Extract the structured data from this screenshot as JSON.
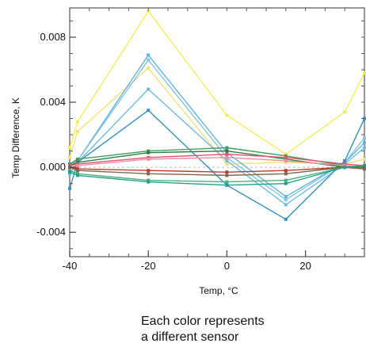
{
  "chart_data": {
    "type": "line",
    "xlabel": "Temp, °C",
    "ylabel": "Temp Difference, K",
    "xlim": [
      -40,
      35
    ],
    "ylim": [
      -0.0055,
      0.0098
    ],
    "xticks": [
      -40,
      -20,
      0,
      20
    ],
    "xtick_labels": [
      "-40",
      "-20",
      "0",
      "20"
    ],
    "yticks": [
      -0.004,
      0.0,
      0.004,
      0.008
    ],
    "ytick_labels": [
      "-0.004",
      "0.000",
      "0.004",
      "0.008"
    ],
    "x": [
      -40,
      -38,
      -20,
      0,
      15,
      30,
      35
    ],
    "grid": false,
    "legend": "none",
    "series": [
      {
        "color": "#f4ee56",
        "values": [
          0.0012,
          0.0028,
          0.0096,
          0.0032,
          0.0008,
          0.0034,
          0.0058
        ]
      },
      {
        "color": "#f1e470",
        "values": [
          0.0006,
          0.0022,
          0.0061,
          0.0002,
          0.0003,
          0.0002,
          0.0005
        ]
      },
      {
        "color": "#5fb6de",
        "values": [
          0.0002,
          0.0004,
          0.0069,
          0.0009,
          -0.0018,
          0.0003,
          0.0015
        ]
      },
      {
        "color": "#82c5e6",
        "values": [
          0.0001,
          0.0004,
          0.0066,
          0.0006,
          -0.002,
          0.0003,
          0.0018
        ]
      },
      {
        "color": "#6ebde2",
        "values": [
          -0.0004,
          0.0003,
          0.0048,
          0.0004,
          -0.0023,
          0.0002,
          0.0012
        ]
      },
      {
        "color": "#2f92cb",
        "values": [
          -0.0013,
          0.0003,
          0.0035,
          -0.0011,
          -0.0032,
          0.0004,
          0.003
        ]
      },
      {
        "color": "#3f9e5a",
        "values": [
          0.0002,
          0.0005,
          0.001,
          0.0012,
          0.0007,
          0.0001,
          0.0
        ]
      },
      {
        "color": "#2b7d45",
        "values": [
          0.0001,
          0.0003,
          0.0009,
          0.001,
          0.0005,
          0.0,
          -0.0001
        ]
      },
      {
        "color": "#e6506d",
        "values": [
          0.0001,
          0.0002,
          0.0006,
          0.0008,
          0.0006,
          0.0002,
          0.0001
        ]
      },
      {
        "color": "#f08aa5",
        "values": [
          0.0,
          0.0001,
          0.0005,
          0.0006,
          0.0004,
          0.0001,
          0.0
        ]
      },
      {
        "color": "#c0392b",
        "values": [
          0.0,
          -0.0001,
          -0.0002,
          -0.0003,
          -0.0002,
          0.0,
          0.0
        ]
      },
      {
        "color": "#7a6a4a",
        "values": [
          0.0,
          -0.0002,
          -0.0004,
          -0.0005,
          -0.0004,
          0.0,
          -0.0001
        ]
      },
      {
        "color": "#4caf77",
        "values": [
          -0.0002,
          -0.0004,
          -0.0008,
          -0.0009,
          -0.0008,
          0.0,
          0.0001
        ]
      },
      {
        "color": "#1f9f8f",
        "values": [
          -0.0003,
          -0.0005,
          -0.0009,
          -0.0011,
          -0.001,
          0.0,
          0.0001
        ]
      }
    ]
  },
  "caption": {
    "line1": "Each color represents",
    "line2": "a different sensor"
  }
}
